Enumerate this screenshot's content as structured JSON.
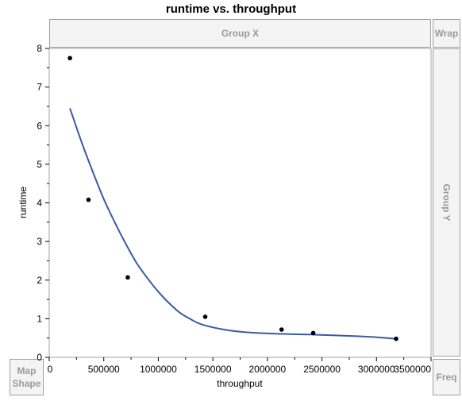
{
  "title": "runtime vs. throughput",
  "zones": {
    "group_x": "Group X",
    "wrap": "Wrap",
    "group_y": "Group Y",
    "map_shape_line1": "Map",
    "map_shape_line2": "Shape",
    "freq": "Freq"
  },
  "colors": {
    "curve": "#3a5ba0",
    "points": "#000000",
    "frame": "#a0a0a0"
  },
  "chart_data": {
    "type": "scatter",
    "title": "runtime vs. throughput",
    "xlabel": "throughput",
    "ylabel": "runtime",
    "xlim": [
      0,
      3500000
    ],
    "ylim": [
      0,
      8
    ],
    "x_ticks": [
      0,
      500000,
      1000000,
      1500000,
      2000000,
      2500000,
      3000000,
      3500000
    ],
    "y_ticks": [
      0,
      1,
      2,
      3,
      4,
      5,
      6,
      7,
      8
    ],
    "grid": false,
    "points": [
      {
        "x": 190000,
        "y": 7.75
      },
      {
        "x": 360000,
        "y": 4.08
      },
      {
        "x": 720000,
        "y": 2.07
      },
      {
        "x": 1430000,
        "y": 1.05
      },
      {
        "x": 2130000,
        "y": 0.72
      },
      {
        "x": 2420000,
        "y": 0.63
      },
      {
        "x": 3180000,
        "y": 0.48
      }
    ],
    "fit_curve": [
      {
        "x": 190000,
        "y": 6.45
      },
      {
        "x": 300000,
        "y": 5.55
      },
      {
        "x": 400000,
        "y": 4.8
      },
      {
        "x": 500000,
        "y": 4.1
      },
      {
        "x": 600000,
        "y": 3.5
      },
      {
        "x": 700000,
        "y": 2.95
      },
      {
        "x": 800000,
        "y": 2.45
      },
      {
        "x": 900000,
        "y": 2.05
      },
      {
        "x": 1000000,
        "y": 1.7
      },
      {
        "x": 1100000,
        "y": 1.4
      },
      {
        "x": 1200000,
        "y": 1.15
      },
      {
        "x": 1300000,
        "y": 0.98
      },
      {
        "x": 1400000,
        "y": 0.85
      },
      {
        "x": 1600000,
        "y": 0.72
      },
      {
        "x": 1800000,
        "y": 0.65
      },
      {
        "x": 2000000,
        "y": 0.62
      },
      {
        "x": 2200000,
        "y": 0.6
      },
      {
        "x": 2400000,
        "y": 0.59
      },
      {
        "x": 2600000,
        "y": 0.57
      },
      {
        "x": 2800000,
        "y": 0.55
      },
      {
        "x": 3000000,
        "y": 0.52
      },
      {
        "x": 3180000,
        "y": 0.48
      }
    ]
  }
}
